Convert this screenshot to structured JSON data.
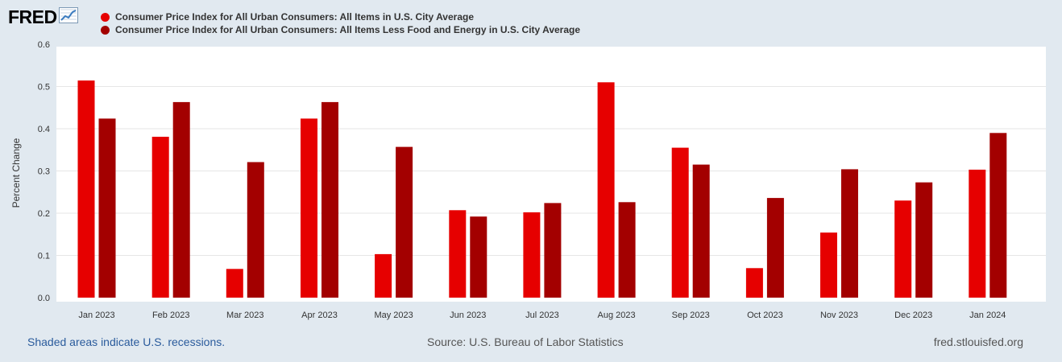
{
  "header": {
    "logo_text": "FRED",
    "logo_icon": "trend-line-icon"
  },
  "footer": {
    "recession_note": "Shaded areas indicate U.S. recessions.",
    "source": "Source: U.S. Bureau of Labor Statistics",
    "site": "fred.stlouisfed.org"
  },
  "colors": {
    "series_1": "#e60000",
    "series_2": "#a30000",
    "plot_bg": "#ffffff",
    "page_bg": "#e1e9f0"
  },
  "chart_data": {
    "type": "bar",
    "title": "",
    "xlabel": "",
    "ylabel": "Percent Change",
    "ylim": [
      0,
      0.6
    ],
    "yticks": [
      "0.0",
      "0.1",
      "0.2",
      "0.3",
      "0.4",
      "0.5",
      "0.6"
    ],
    "grid": true,
    "legend_position": "top-left",
    "categories": [
      "Jan 2023",
      "Feb 2023",
      "Mar 2023",
      "Apr 2023",
      "May 2023",
      "Jun 2023",
      "Jul 2023",
      "Aug 2023",
      "Sep 2023",
      "Oct 2023",
      "Nov 2023",
      "Dec 2023",
      "Jan 2024"
    ],
    "series": [
      {
        "name": "Consumer Price Index for All Urban Consumers: All Items in U.S. City Average",
        "values": [
          0.514,
          0.381,
          0.068,
          0.424,
          0.103,
          0.207,
          0.202,
          0.51,
          0.355,
          0.07,
          0.154,
          0.23,
          0.303
        ]
      },
      {
        "name": "Consumer Price Index for All Urban Consumers: All Items Less Food and Energy in U.S. City Average",
        "values": [
          0.424,
          0.463,
          0.321,
          0.463,
          0.357,
          0.192,
          0.224,
          0.226,
          0.315,
          0.236,
          0.304,
          0.273,
          0.39
        ]
      }
    ]
  }
}
